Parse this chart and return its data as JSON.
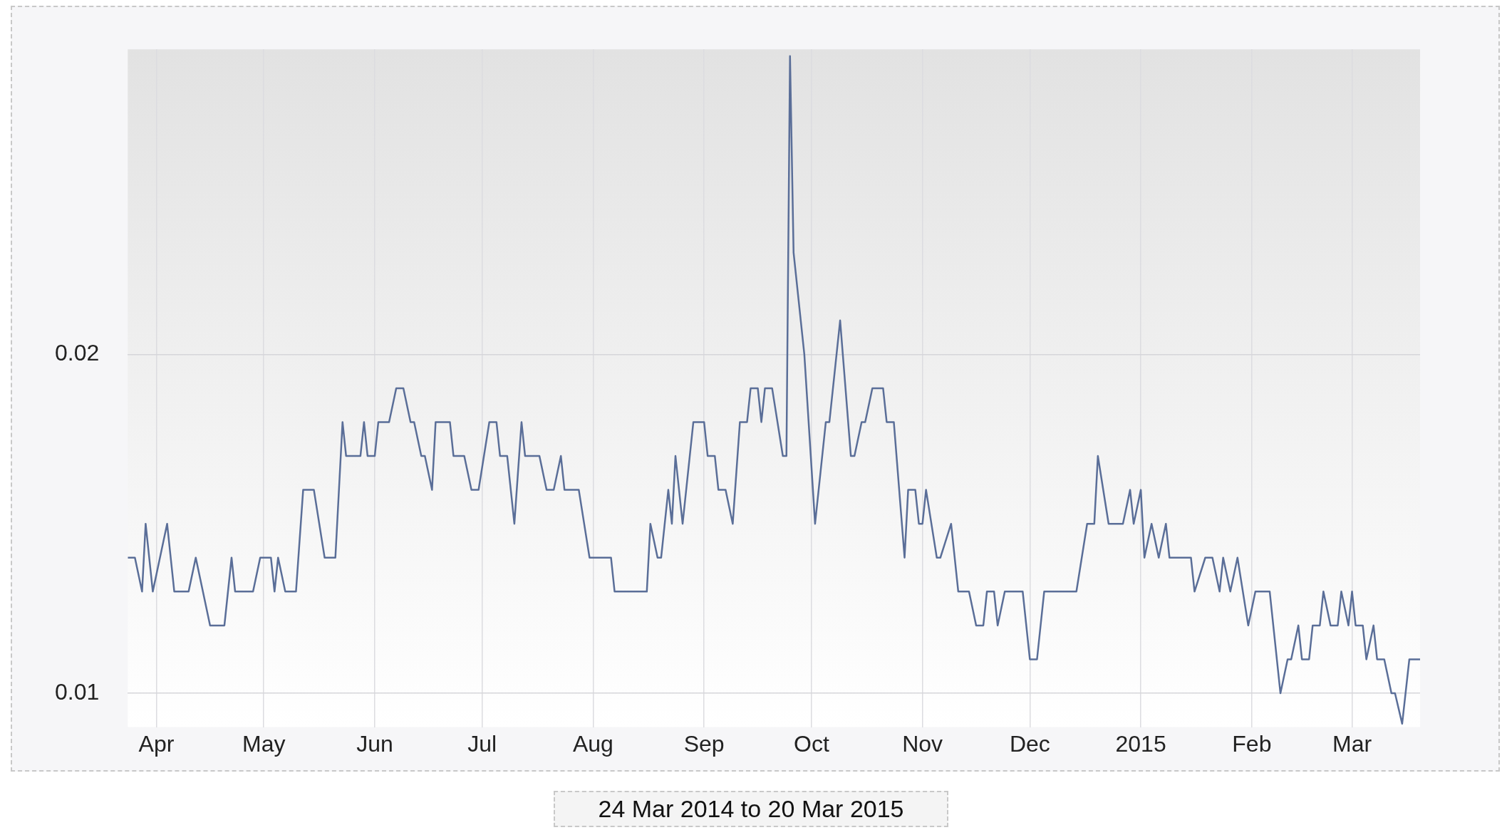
{
  "chart_data": {
    "type": "line",
    "annotations": [
      "24 Mar 2014 to 20 Mar 2015"
    ],
    "x": [
      "2014-03-24",
      "2014-03-26",
      "2014-03-28",
      "2014-03-29",
      "2014-03-31",
      "2014-04-04",
      "2014-04-06",
      "2014-04-10",
      "2014-04-12",
      "2014-04-16",
      "2014-04-20",
      "2014-04-22",
      "2014-04-23",
      "2014-04-28",
      "2014-04-30",
      "2014-05-03",
      "2014-05-04",
      "2014-05-05",
      "2014-05-07",
      "2014-05-10",
      "2014-05-12",
      "2014-05-15",
      "2014-05-18",
      "2014-05-21",
      "2014-05-23",
      "2014-05-24",
      "2014-05-28",
      "2014-05-29",
      "2014-05-30",
      "2014-06-01",
      "2014-06-02",
      "2014-06-05",
      "2014-06-07",
      "2014-06-09",
      "2014-06-11",
      "2014-06-12",
      "2014-06-14",
      "2014-06-15",
      "2014-06-17",
      "2014-06-18",
      "2014-06-22",
      "2014-06-23",
      "2014-06-26",
      "2014-06-28",
      "2014-06-30",
      "2014-07-03",
      "2014-07-05",
      "2014-07-06",
      "2014-07-08",
      "2014-07-10",
      "2014-07-12",
      "2014-07-13",
      "2014-07-17",
      "2014-07-19",
      "2014-07-21",
      "2014-07-23",
      "2014-07-24",
      "2014-07-28",
      "2014-07-31",
      "2014-08-06",
      "2014-08-07",
      "2014-08-16",
      "2014-08-17",
      "2014-08-19",
      "2014-08-20",
      "2014-08-22",
      "2014-08-23",
      "2014-08-24",
      "2014-08-26",
      "2014-08-29",
      "2014-09-01",
      "2014-09-02",
      "2014-09-04",
      "2014-09-05",
      "2014-09-07",
      "2014-09-09",
      "2014-09-11",
      "2014-09-13",
      "2014-09-14",
      "2014-09-16",
      "2014-09-17",
      "2014-09-18",
      "2014-09-20",
      "2014-09-23",
      "2014-09-24",
      "2014-09-25",
      "2014-09-26",
      "2014-09-28",
      "2014-09-29",
      "2014-10-02",
      "2014-10-05",
      "2014-10-06",
      "2014-10-09",
      "2014-10-12",
      "2014-10-13",
      "2014-10-15",
      "2014-10-16",
      "2014-10-18",
      "2014-10-21",
      "2014-10-22",
      "2014-10-24",
      "2014-10-27",
      "2014-10-28",
      "2014-10-30",
      "2014-10-31",
      "2014-11-01",
      "2014-11-02",
      "2014-11-05",
      "2014-11-06",
      "2014-11-09",
      "2014-11-11",
      "2014-11-14",
      "2014-11-16",
      "2014-11-18",
      "2014-11-19",
      "2014-11-21",
      "2014-11-22",
      "2014-11-24",
      "2014-11-29",
      "2014-12-01",
      "2014-12-03",
      "2014-12-05",
      "2014-12-14",
      "2014-12-17",
      "2014-12-19",
      "2014-12-20",
      "2014-12-23",
      "2014-12-27",
      "2014-12-29",
      "2014-12-30",
      "2015-01-01",
      "2015-01-02",
      "2015-01-04",
      "2015-01-06",
      "2015-01-08",
      "2015-01-09",
      "2015-01-15",
      "2015-01-16",
      "2015-01-19",
      "2015-01-21",
      "2015-01-23",
      "2015-01-24",
      "2015-01-26",
      "2015-01-28",
      "2015-01-31",
      "2015-02-02",
      "2015-02-06",
      "2015-02-09",
      "2015-02-11",
      "2015-02-12",
      "2015-02-14",
      "2015-02-15",
      "2015-02-17",
      "2015-02-18",
      "2015-02-20",
      "2015-02-21",
      "2015-02-23",
      "2015-02-25",
      "2015-02-26",
      "2015-02-28",
      "2015-03-01",
      "2015-03-02",
      "2015-03-04",
      "2015-03-05",
      "2015-03-07",
      "2015-03-08",
      "2015-03-10",
      "2015-03-12",
      "2015-03-13",
      "2015-03-15",
      "2015-03-17",
      "2015-03-20"
    ],
    "series": [
      {
        "color": "#5a6e98",
        "values": [
          0.014,
          0.014,
          0.013,
          0.015,
          0.013,
          0.015,
          0.013,
          0.013,
          0.014,
          0.012,
          0.012,
          0.014,
          0.013,
          0.013,
          0.014,
          0.014,
          0.013,
          0.014,
          0.013,
          0.013,
          0.016,
          0.016,
          0.014,
          0.014,
          0.018,
          0.017,
          0.017,
          0.018,
          0.017,
          0.017,
          0.018,
          0.018,
          0.019,
          0.019,
          0.018,
          0.018,
          0.017,
          0.017,
          0.016,
          0.018,
          0.018,
          0.017,
          0.017,
          0.016,
          0.016,
          0.018,
          0.018,
          0.017,
          0.017,
          0.015,
          0.018,
          0.017,
          0.017,
          0.016,
          0.016,
          0.017,
          0.016,
          0.016,
          0.014,
          0.014,
          0.013,
          0.013,
          0.015,
          0.014,
          0.014,
          0.016,
          0.015,
          0.017,
          0.015,
          0.018,
          0.018,
          0.017,
          0.017,
          0.016,
          0.016,
          0.015,
          0.018,
          0.018,
          0.019,
          0.019,
          0.018,
          0.019,
          0.019,
          0.017,
          0.017,
          0.0288,
          0.023,
          0.021,
          0.02,
          0.015,
          0.018,
          0.018,
          0.021,
          0.017,
          0.017,
          0.018,
          0.018,
          0.019,
          0.019,
          0.018,
          0.018,
          0.014,
          0.016,
          0.016,
          0.015,
          0.015,
          0.016,
          0.014,
          0.014,
          0.015,
          0.013,
          0.013,
          0.012,
          0.012,
          0.013,
          0.013,
          0.012,
          0.013,
          0.013,
          0.011,
          0.011,
          0.013,
          0.013,
          0.015,
          0.015,
          0.017,
          0.015,
          0.015,
          0.016,
          0.015,
          0.016,
          0.014,
          0.015,
          0.014,
          0.015,
          0.014,
          0.014,
          0.013,
          0.014,
          0.014,
          0.013,
          0.014,
          0.013,
          0.014,
          0.012,
          0.013,
          0.013,
          0.01,
          0.011,
          0.011,
          0.012,
          0.011,
          0.011,
          0.012,
          0.012,
          0.013,
          0.012,
          0.012,
          0.013,
          0.012,
          0.013,
          0.012,
          0.012,
          0.011,
          0.012,
          0.011,
          0.011,
          0.01,
          0.01,
          0.0091,
          0.011,
          0.011
        ]
      }
    ],
    "xlim": [
      "2014-03-24",
      "2015-03-20"
    ],
    "xticks": [
      {
        "value": "2014-04-01",
        "label": "Apr"
      },
      {
        "value": "2014-05-01",
        "label": "May"
      },
      {
        "value": "2014-06-01",
        "label": "Jun"
      },
      {
        "value": "2014-07-01",
        "label": "Jul"
      },
      {
        "value": "2014-08-01",
        "label": "Aug"
      },
      {
        "value": "2014-09-01",
        "label": "Sep"
      },
      {
        "value": "2014-10-01",
        "label": "Oct"
      },
      {
        "value": "2014-11-01",
        "label": "Nov"
      },
      {
        "value": "2014-12-01",
        "label": "Dec"
      },
      {
        "value": "2015-01-01",
        "label": "2015"
      },
      {
        "value": "2015-02-01",
        "label": "Feb"
      },
      {
        "value": "2015-03-01",
        "label": "Mar"
      }
    ],
    "ylim": [
      0.009,
      0.029
    ],
    "yticks": [
      0.01,
      0.02
    ],
    "grid": true,
    "marker": "none",
    "line_style": "solid"
  }
}
